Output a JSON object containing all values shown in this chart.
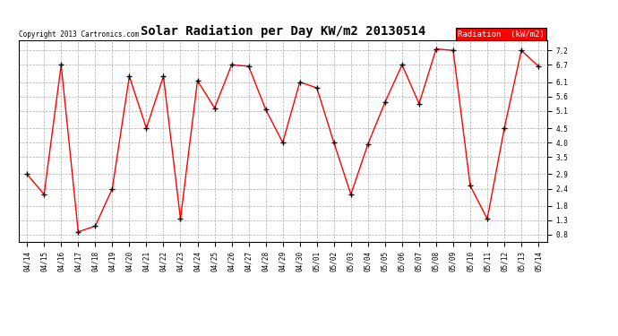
{
  "title": "Solar Radiation per Day KW/m2 20130514",
  "copyright": "Copyright 2013 Cartronics.com",
  "legend_label": "Radiation  (kW/m2)",
  "labels": [
    "04/14",
    "04/15",
    "04/16",
    "04/17",
    "04/18",
    "04/19",
    "04/20",
    "04/21",
    "04/22",
    "04/23",
    "04/24",
    "04/25",
    "04/26",
    "04/27",
    "04/28",
    "04/29",
    "04/30",
    "05/01",
    "05/02",
    "05/03",
    "05/04",
    "05/05",
    "05/06",
    "05/07",
    "05/08",
    "05/09",
    "05/10",
    "05/11",
    "05/12",
    "05/13",
    "05/14"
  ],
  "values": [
    2.9,
    2.2,
    6.7,
    0.9,
    1.1,
    2.4,
    6.3,
    4.5,
    6.3,
    1.35,
    6.15,
    5.2,
    6.7,
    6.65,
    5.15,
    4.0,
    6.1,
    5.9,
    4.0,
    2.2,
    3.95,
    5.4,
    6.7,
    5.35,
    7.25,
    7.2,
    2.5,
    1.35,
    4.5,
    7.2,
    6.65
  ],
  "line_color": "red",
  "marker_color": "black",
  "bg_color": "#ffffff",
  "grid_color": "#aaaaaa",
  "yticks": [
    0.8,
    1.3,
    1.8,
    2.4,
    2.9,
    3.5,
    4.0,
    4.5,
    5.1,
    5.6,
    6.1,
    6.7,
    7.2
  ],
  "ylim": [
    0.55,
    7.55
  ],
  "legend_bg": "#ff0000",
  "legend_text_color": "#ffffff",
  "title_fontsize": 10,
  "copyright_fontsize": 5.5,
  "tick_fontsize": 5.5,
  "legend_fontsize": 6.5
}
